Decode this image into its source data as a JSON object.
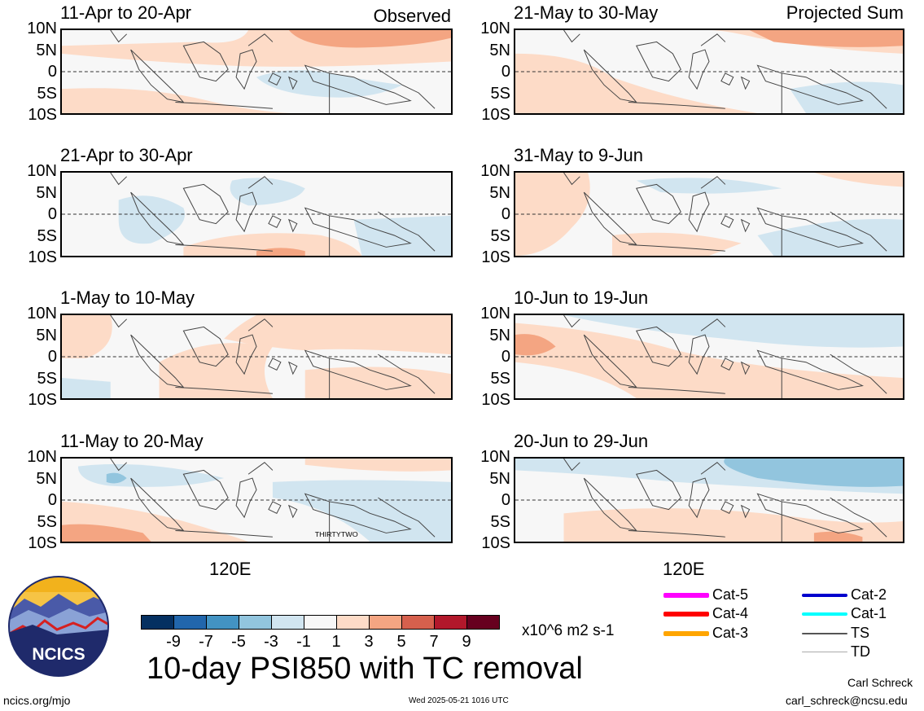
{
  "header": {
    "observed_label": "Observed",
    "projected_label": "Projected Sum"
  },
  "panels": [
    {
      "title": "11-Apr to 20-Apr"
    },
    {
      "title": "21-Apr to 30-Apr"
    },
    {
      "title": "1-May to 10-May"
    },
    {
      "title": "11-May to 20-May"
    },
    {
      "title": "21-May to 30-May"
    },
    {
      "title": "31-May to 9-Jun"
    },
    {
      "title": "10-Jun to 19-Jun"
    },
    {
      "title": "20-Jun to 29-Jun"
    }
  ],
  "latitude_labels": [
    "10N",
    "5N",
    "0",
    "5S",
    "10S"
  ],
  "longitude_label": "120E",
  "storm_label": "THIRTYTWO",
  "colorbar": {
    "colors": [
      "#053061",
      "#2166ac",
      "#4393c3",
      "#92c5de",
      "#d1e5f0",
      "#f7f7f7",
      "#fddbc7",
      "#f4a582",
      "#d6604d",
      "#b2182b",
      "#67001f"
    ],
    "labels": [
      "-9",
      "-7",
      "-5",
      "-3",
      "-1",
      "1",
      "3",
      "5",
      "7",
      "9"
    ],
    "units": "x10^6 m2 s-1"
  },
  "title": "10-day PSI850 with TC removal",
  "legend": [
    {
      "label": "Cat-5",
      "color": "#ff00ff"
    },
    {
      "label": "Cat-4",
      "color": "#ff0000"
    },
    {
      "label": "Cat-3",
      "color": "#ffa500"
    },
    {
      "label": "Cat-2",
      "color": "#0000cd"
    },
    {
      "label": "Cat-1",
      "color": "#00ffff"
    },
    {
      "label": "TS",
      "color": "#555555"
    },
    {
      "label": "TD",
      "color": "#aaaaaa"
    }
  ],
  "logo": {
    "text": "NCICS"
  },
  "footer": {
    "url": "ncics.org/mjo",
    "timestamp": "Wed 2025-05-21 1016 UTC",
    "author": "Carl Schreck",
    "email": "carl_schreck@ncsu.edu"
  }
}
